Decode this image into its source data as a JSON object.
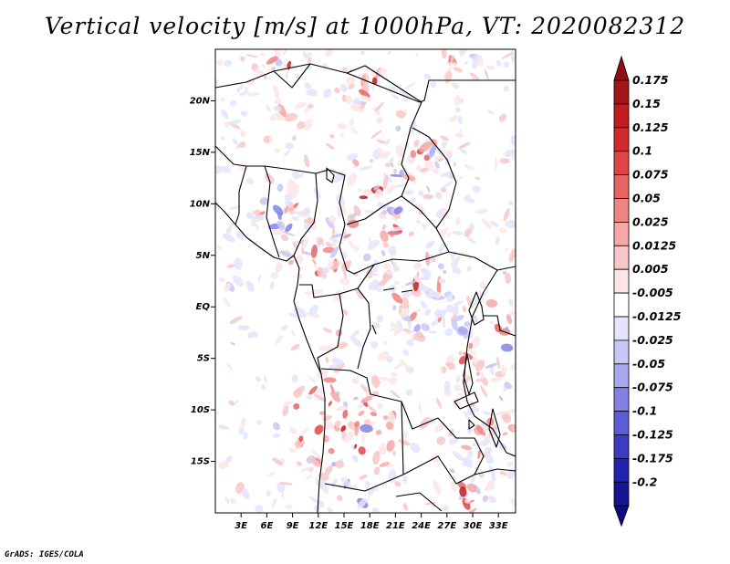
{
  "title": "Vertical velocity [m/s] at 1000hPa, VT: 2020082312",
  "footer": "GrADS: IGES/COLA",
  "map": {
    "lon_range": [
      0,
      35
    ],
    "lat_range": [
      -20,
      25
    ],
    "lat_ticks": [
      {
        "value": 20,
        "label": "20N"
      },
      {
        "value": 15,
        "label": "15N"
      },
      {
        "value": 10,
        "label": "10N"
      },
      {
        "value": 5,
        "label": "5N"
      },
      {
        "value": 0,
        "label": "EQ"
      },
      {
        "value": -5,
        "label": "5S"
      },
      {
        "value": -10,
        "label": "10S"
      },
      {
        "value": -15,
        "label": "15S"
      }
    ],
    "lon_ticks": [
      {
        "value": 3,
        "label": "3E"
      },
      {
        "value": 6,
        "label": "6E"
      },
      {
        "value": 9,
        "label": "9E"
      },
      {
        "value": 12,
        "label": "12E"
      },
      {
        "value": 15,
        "label": "15E"
      },
      {
        "value": 18,
        "label": "18E"
      },
      {
        "value": 21,
        "label": "21E"
      },
      {
        "value": 24,
        "label": "24E"
      },
      {
        "value": 27,
        "label": "27E"
      },
      {
        "value": 30,
        "label": "30E"
      },
      {
        "value": 33,
        "label": "33E"
      }
    ]
  },
  "colorbar": {
    "levels": [
      {
        "label": "0.175",
        "color": "#a51416"
      },
      {
        "label": "0.15",
        "color": "#bf1d1f"
      },
      {
        "label": "0.125",
        "color": "#d12b2b"
      },
      {
        "label": "0.1",
        "color": "#e04646"
      },
      {
        "label": "0.075",
        "color": "#e86464"
      },
      {
        "label": "0.05",
        "color": "#ee8585"
      },
      {
        "label": "0.025",
        "color": "#f4a8a8"
      },
      {
        "label": "0.0125",
        "color": "#f8c8c8"
      },
      {
        "label": "0.005",
        "color": "#fce6e6"
      },
      {
        "label": "-0.005",
        "color": "#ffffff"
      },
      {
        "label": "-0.0125",
        "color": "#e4e4fb"
      },
      {
        "label": "-0.025",
        "color": "#c8c8f4"
      },
      {
        "label": "-0.05",
        "color": "#a8a8ee"
      },
      {
        "label": "-0.075",
        "color": "#8282e6"
      },
      {
        "label": "-0.1",
        "color": "#5c5cd8"
      },
      {
        "label": "-0.125",
        "color": "#3b3bc4"
      },
      {
        "label": "-0.175",
        "color": "#2222ae"
      },
      {
        "label": "-0.2",
        "color": "#141494"
      }
    ],
    "top_arrow_color": "#8e1012",
    "bottom_arrow_color": "#0c0c80"
  }
}
